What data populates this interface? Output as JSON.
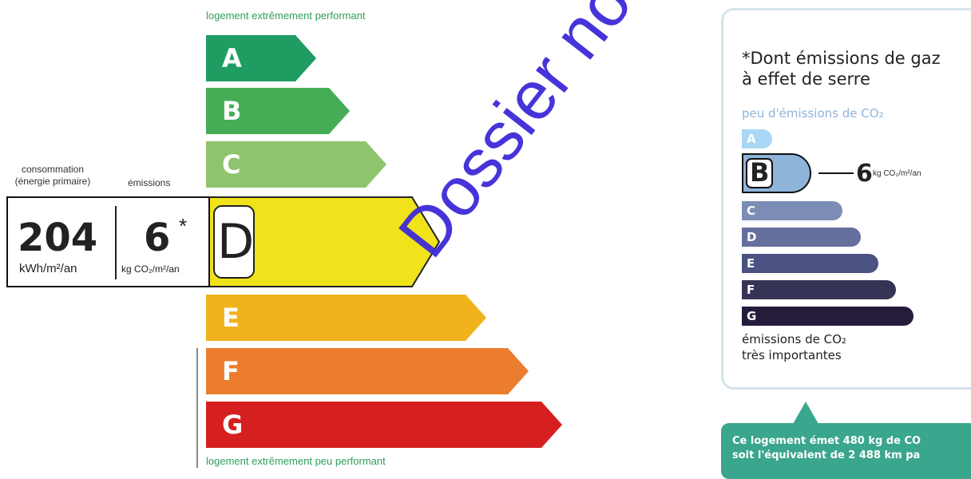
{
  "dpe": {
    "top_label": "logement extrêmement performant",
    "bottom_label": "logement extrêmement peu performant",
    "classes": [
      {
        "letter": "A",
        "color": "#1f9c62"
      },
      {
        "letter": "B",
        "color": "#45ad55"
      },
      {
        "letter": "C",
        "color": "#8fc46e"
      },
      {
        "letter": "D",
        "color": "#f0e21b"
      },
      {
        "letter": "E",
        "color": "#f0b31c"
      },
      {
        "letter": "F",
        "color": "#ec7d2f"
      },
      {
        "letter": "G",
        "color": "#d6201f"
      }
    ],
    "current_class": "D"
  },
  "stats": {
    "consumption_header_1": "consommation",
    "consumption_header_2": "(énergie primaire)",
    "emissions_header": "émissions",
    "consumption_value": "204",
    "consumption_unit": "kWh/m²/an",
    "emissions_value": "6",
    "emissions_star": "*",
    "emissions_unit": "kg CO₂/m²/an"
  },
  "ges": {
    "title_1": "*Dont émissions de gaz",
    "title_2": "à effet de serre",
    "top_label": "peu d'émissions de CO₂",
    "bottom_label_1": "émissions de CO₂",
    "bottom_label_2": "très importantes",
    "classes": [
      {
        "letter": "A",
        "color": "#a9d7f4"
      },
      {
        "letter": "B",
        "color": "#8fb4d9"
      },
      {
        "letter": "C",
        "color": "#7c8db5"
      },
      {
        "letter": "D",
        "color": "#65709e"
      },
      {
        "letter": "E",
        "color": "#4b5180"
      },
      {
        "letter": "F",
        "color": "#363456"
      },
      {
        "letter": "G",
        "color": "#251b3b"
      }
    ],
    "current_class": "B",
    "current_value": "6",
    "current_unit": "kg CO₂/m²/an"
  },
  "callout": {
    "line_1": "Ce logement émet 480 kg de CO",
    "line_2": "soit l'équivalent de 2 488 km pa"
  },
  "watermark": "Dossier non payé"
}
